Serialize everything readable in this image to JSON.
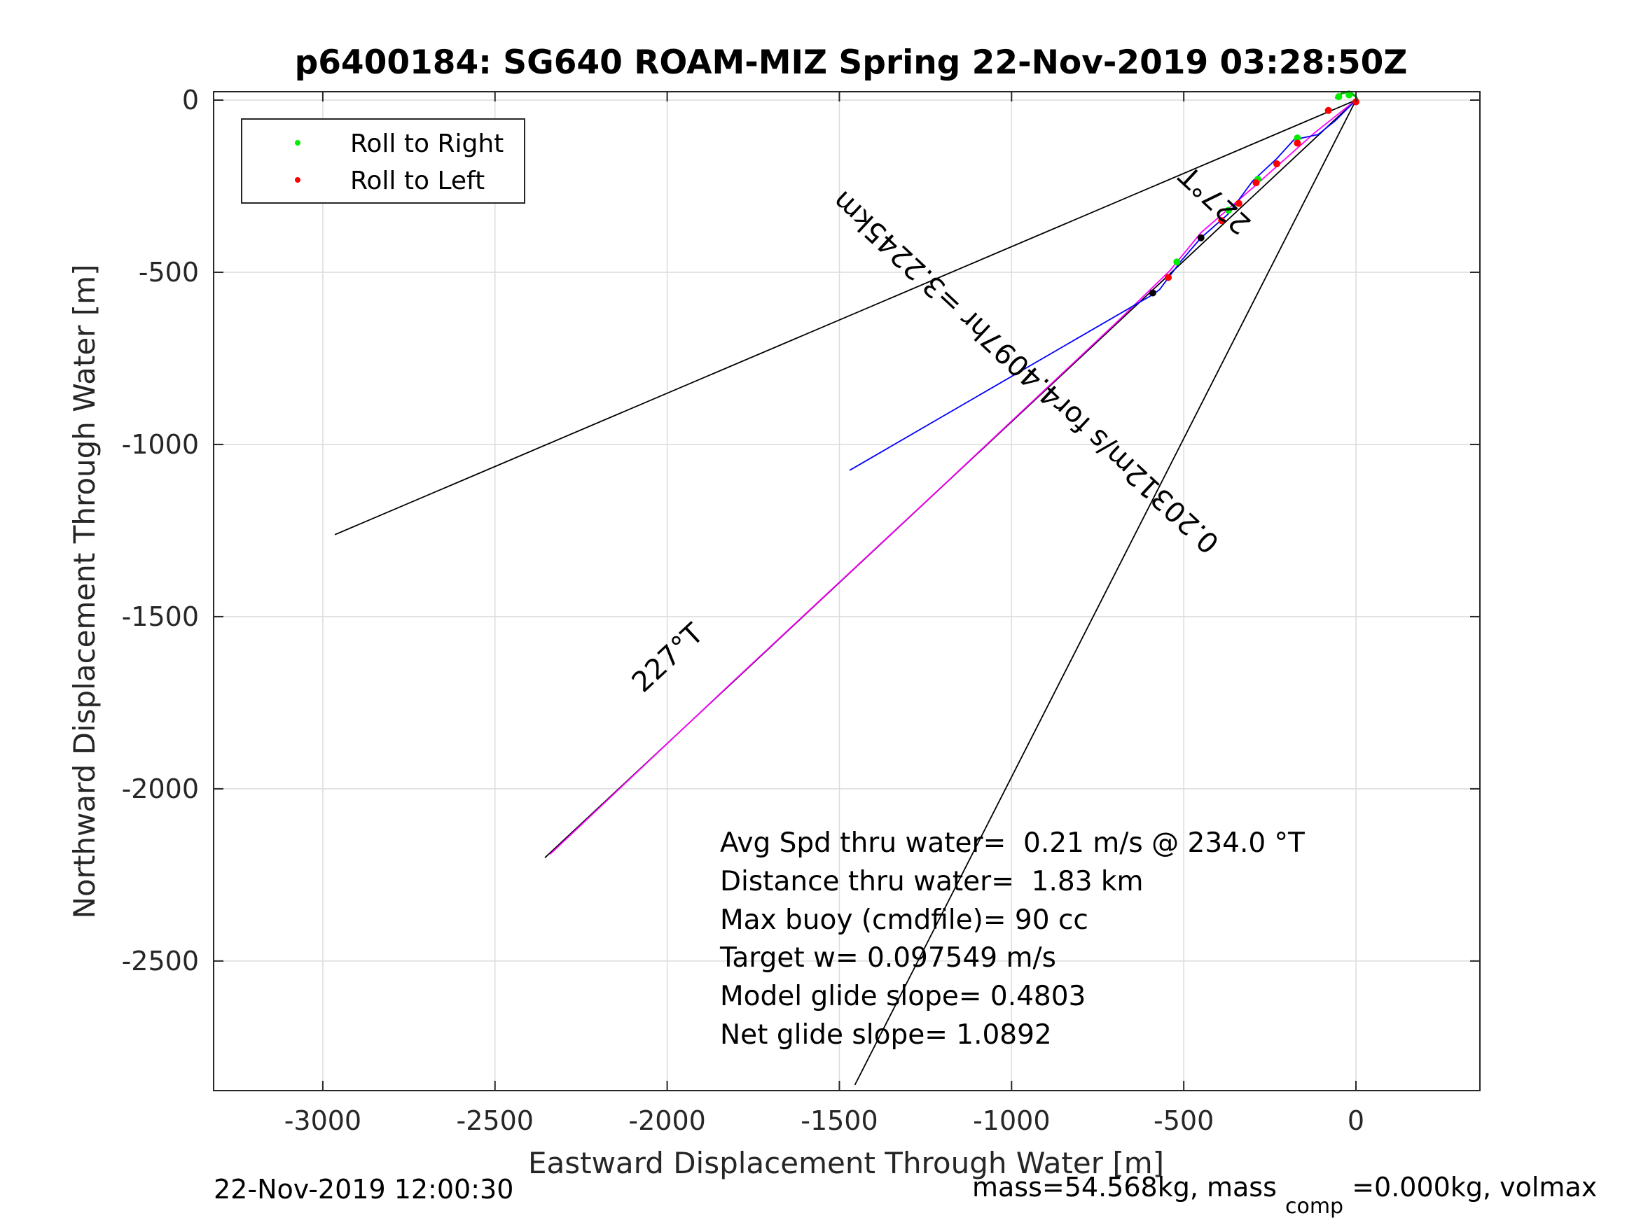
{
  "chart_data": {
    "type": "line",
    "title": "p6400184: SG640 ROAM-MIZ Spring 22-Nov-2019 03:28:50Z",
    "xlabel": "Eastward Displacement Through Water [m]",
    "ylabel": "Northward Displacement Through Water [m]",
    "xlim": [
      -3300,
      350
    ],
    "ylim": [
      -2860,
      25
    ],
    "x_ticks": [
      -3000,
      -2500,
      -2000,
      -1500,
      -1000,
      -500,
      0
    ],
    "x_tick_labels": [
      "-3000",
      "-2500",
      "-2000",
      "-1500",
      "-1000",
      "-500",
      "0"
    ],
    "y_ticks": [
      0,
      -500,
      -1000,
      -1500,
      -2000,
      -2500
    ],
    "y_tick_labels": [
      "0",
      "-500",
      "-1000",
      "-1500",
      "-2000",
      "-2500"
    ],
    "grid": true,
    "legend": {
      "placement": "top-left",
      "entries": [
        {
          "label": "Roll to Right",
          "color": "#00ee00"
        },
        {
          "label": "Roll to Left",
          "color": "#ff0000"
        }
      ]
    },
    "lines": [
      {
        "color": "#000000",
        "points": [
          [
            0,
            0
          ],
          [
            -2965,
            -1262
          ]
        ]
      },
      {
        "color": "#000000",
        "points": [
          [
            0,
            0
          ],
          [
            -1455,
            -2860
          ]
        ]
      },
      {
        "color": "#000000",
        "points": [
          [
            0,
            0
          ],
          [
            -2355,
            -2200
          ]
        ]
      },
      {
        "color": "#ff00ff",
        "points": [
          [
            0,
            0
          ],
          [
            -120,
            -95
          ],
          [
            -300,
            -255
          ],
          [
            -450,
            -385
          ],
          [
            -540,
            -495
          ],
          [
            -700,
            -650
          ],
          [
            -1200,
            -1120
          ],
          [
            -1800,
            -1680
          ],
          [
            -2340,
            -2190
          ]
        ]
      },
      {
        "color": "#0000ff",
        "points": [
          [
            0,
            0
          ],
          [
            -60,
            -60
          ],
          [
            -110,
            -100
          ],
          [
            -180,
            -115
          ],
          [
            -230,
            -170
          ],
          [
            -300,
            -235
          ],
          [
            -370,
            -330
          ],
          [
            -450,
            -400
          ],
          [
            -510,
            -470
          ],
          [
            -570,
            -550
          ],
          [
            -590,
            -565
          ],
          [
            -1470,
            -1075
          ]
        ]
      },
      {
        "color": "#00aa00",
        "points": [
          [
            -60,
            5
          ],
          [
            -40,
            20
          ],
          [
            -20,
            25
          ],
          [
            0,
            10
          ],
          [
            5,
            0
          ]
        ]
      }
    ],
    "points_right": [
      [
        -50,
        10
      ],
      [
        -20,
        15
      ],
      [
        -170,
        -110
      ],
      [
        -285,
        -230
      ],
      [
        -370,
        -320
      ],
      [
        -520,
        -470
      ]
    ],
    "points_left": [
      [
        0,
        -5
      ],
      [
        -80,
        -30
      ],
      [
        -170,
        -125
      ],
      [
        -230,
        -185
      ],
      [
        -290,
        -240
      ],
      [
        -340,
        -300
      ],
      [
        -390,
        -350
      ],
      [
        -545,
        -515
      ]
    ],
    "points_black": [
      [
        -450,
        -400
      ],
      [
        -590,
        -560
      ]
    ],
    "annotations": [
      {
        "text": "227°T",
        "x": -1980,
        "y": -1640,
        "angle": -43,
        "color": "#000000"
      },
      {
        "text": "227°T",
        "x": -390,
        "y": -270,
        "angle": -137,
        "color": "#000000"
      },
      {
        "text": "0.20312m/s for4.4097hr =3.2245km",
        "x": -940,
        "y": -770,
        "angle": -137,
        "color": "#000000"
      }
    ],
    "stats": [
      "Avg Spd thru water=  0.21 m/s @ 234.0 °T",
      "Distance thru water=  1.83 km",
      "Max buoy (cmdfile)= 90 cc",
      "Target w= 0.097549 m/s",
      "Model glide slope= 0.4803",
      "Net glide slope= 1.0892"
    ],
    "footer_left": "22-Nov-2019 12:00:30",
    "footer_right_pre": "mass=54.568kg, mass",
    "footer_right_sub": "comp",
    "footer_right_post": "=0.000kg, volmax"
  }
}
